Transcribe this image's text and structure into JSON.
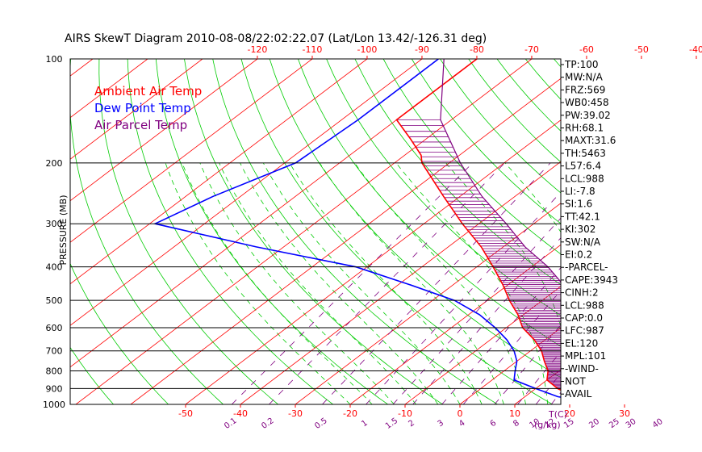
{
  "chart_data": {
    "type": "skew-t",
    "title": "AIRS SkewT Diagram 2010-08-08/22:02:22.07 (Lat/Lon 13.42/-126.31 deg)",
    "ylabel": "PRESSURE (MB)",
    "xlabel_right": "T(C)",
    "mix_unit": "(g/kg)",
    "pressure_ticks": [
      100,
      200,
      300,
      400,
      500,
      600,
      700,
      800,
      900,
      1000
    ],
    "bottom_temp_ticks": [
      "-50",
      "-40",
      "-30",
      "-20",
      "-10",
      "0",
      "10",
      "20",
      "30"
    ],
    "top_temp_ticks": [
      "-120",
      "-110",
      "-100",
      "-90",
      "-80",
      "-70",
      "-60",
      "-50",
      "-40"
    ],
    "mixing_ratio_labels": [
      "0.1",
      "0.2",
      "0.5",
      "1",
      "1.5",
      "2",
      "3",
      "4",
      "6",
      "8",
      "10",
      "12",
      "15",
      "20",
      "25",
      "30",
      "40"
    ],
    "legend": [
      {
        "name": "Ambient Air Temp",
        "color": "#ff0000"
      },
      {
        "name": "Dew Point Temp",
        "color": "#0000ff"
      },
      {
        "name": "Air Parcel Temp",
        "color": "#800080"
      }
    ],
    "series": [
      {
        "name": "Ambient Air Temp",
        "color": "#ff0000",
        "points": [
          [
            100,
            -80
          ],
          [
            150,
            -80
          ],
          [
            170,
            -73
          ],
          [
            190,
            -67
          ],
          [
            200,
            -65
          ],
          [
            250,
            -53
          ],
          [
            300,
            -43
          ],
          [
            350,
            -34
          ],
          [
            400,
            -27
          ],
          [
            450,
            -21
          ],
          [
            500,
            -16
          ],
          [
            550,
            -11
          ],
          [
            600,
            -7
          ],
          [
            650,
            -2
          ],
          [
            700,
            2
          ],
          [
            750,
            5
          ],
          [
            800,
            8
          ],
          [
            850,
            10
          ],
          [
            900,
            14
          ],
          [
            950,
            19
          ],
          [
            1000,
            26
          ]
        ]
      },
      {
        "name": "Dew Point Temp",
        "color": "#0000ff",
        "points": [
          [
            100,
            -87
          ],
          [
            150,
            -87
          ],
          [
            200,
            -88
          ],
          [
            250,
            -95
          ],
          [
            300,
            -99
          ],
          [
            350,
            -75
          ],
          [
            400,
            -52
          ],
          [
            450,
            -38
          ],
          [
            500,
            -26
          ],
          [
            550,
            -18
          ],
          [
            600,
            -12
          ],
          [
            650,
            -7
          ],
          [
            700,
            -3
          ],
          [
            750,
            0
          ],
          [
            800,
            2
          ],
          [
            850,
            4
          ],
          [
            900,
            10
          ],
          [
            950,
            16
          ],
          [
            1000,
            26
          ]
        ]
      },
      {
        "name": "Air Parcel Temp",
        "color": "#800080",
        "points": [
          [
            100,
            -86
          ],
          [
            150,
            -72
          ],
          [
            200,
            -58
          ],
          [
            250,
            -46
          ],
          [
            300,
            -35
          ],
          [
            350,
            -26
          ],
          [
            400,
            -17
          ],
          [
            450,
            -10
          ],
          [
            500,
            -4
          ],
          [
            550,
            1
          ],
          [
            600,
            6
          ],
          [
            650,
            9
          ],
          [
            700,
            12
          ],
          [
            750,
            15
          ],
          [
            800,
            17
          ],
          [
            850,
            19
          ],
          [
            900,
            21
          ],
          [
            950,
            23
          ],
          [
            1000,
            26
          ]
        ]
      }
    ],
    "indices": [
      "TP:100",
      "MW:N/A",
      "FRZ:569",
      "WB0:458",
      "PW:39.02",
      "RH:68.1",
      "MAXT:31.6",
      "TH:5463",
      "L57:6.4",
      "LCL:988",
      "LI:-7.8",
      "SI:1.6",
      "TT:42.1",
      "KI:302",
      "SW:N/A",
      "EI:0.2",
      "-PARCEL-",
      "CAPE:3943",
      "CINH:2",
      "LCL:988",
      "CAP:0.0",
      "LFC:987",
      "EL:120",
      "MPL:101",
      "-WIND-",
      "NOT",
      "AVAIL"
    ],
    "colors": {
      "isotherm": "#ff0000",
      "dry_adiabat": "#00cc00",
      "moist_adiabat": "#00cc00",
      "mixing_ratio": "#800080",
      "hatching": "#800080",
      "isobar": "#000000"
    }
  }
}
